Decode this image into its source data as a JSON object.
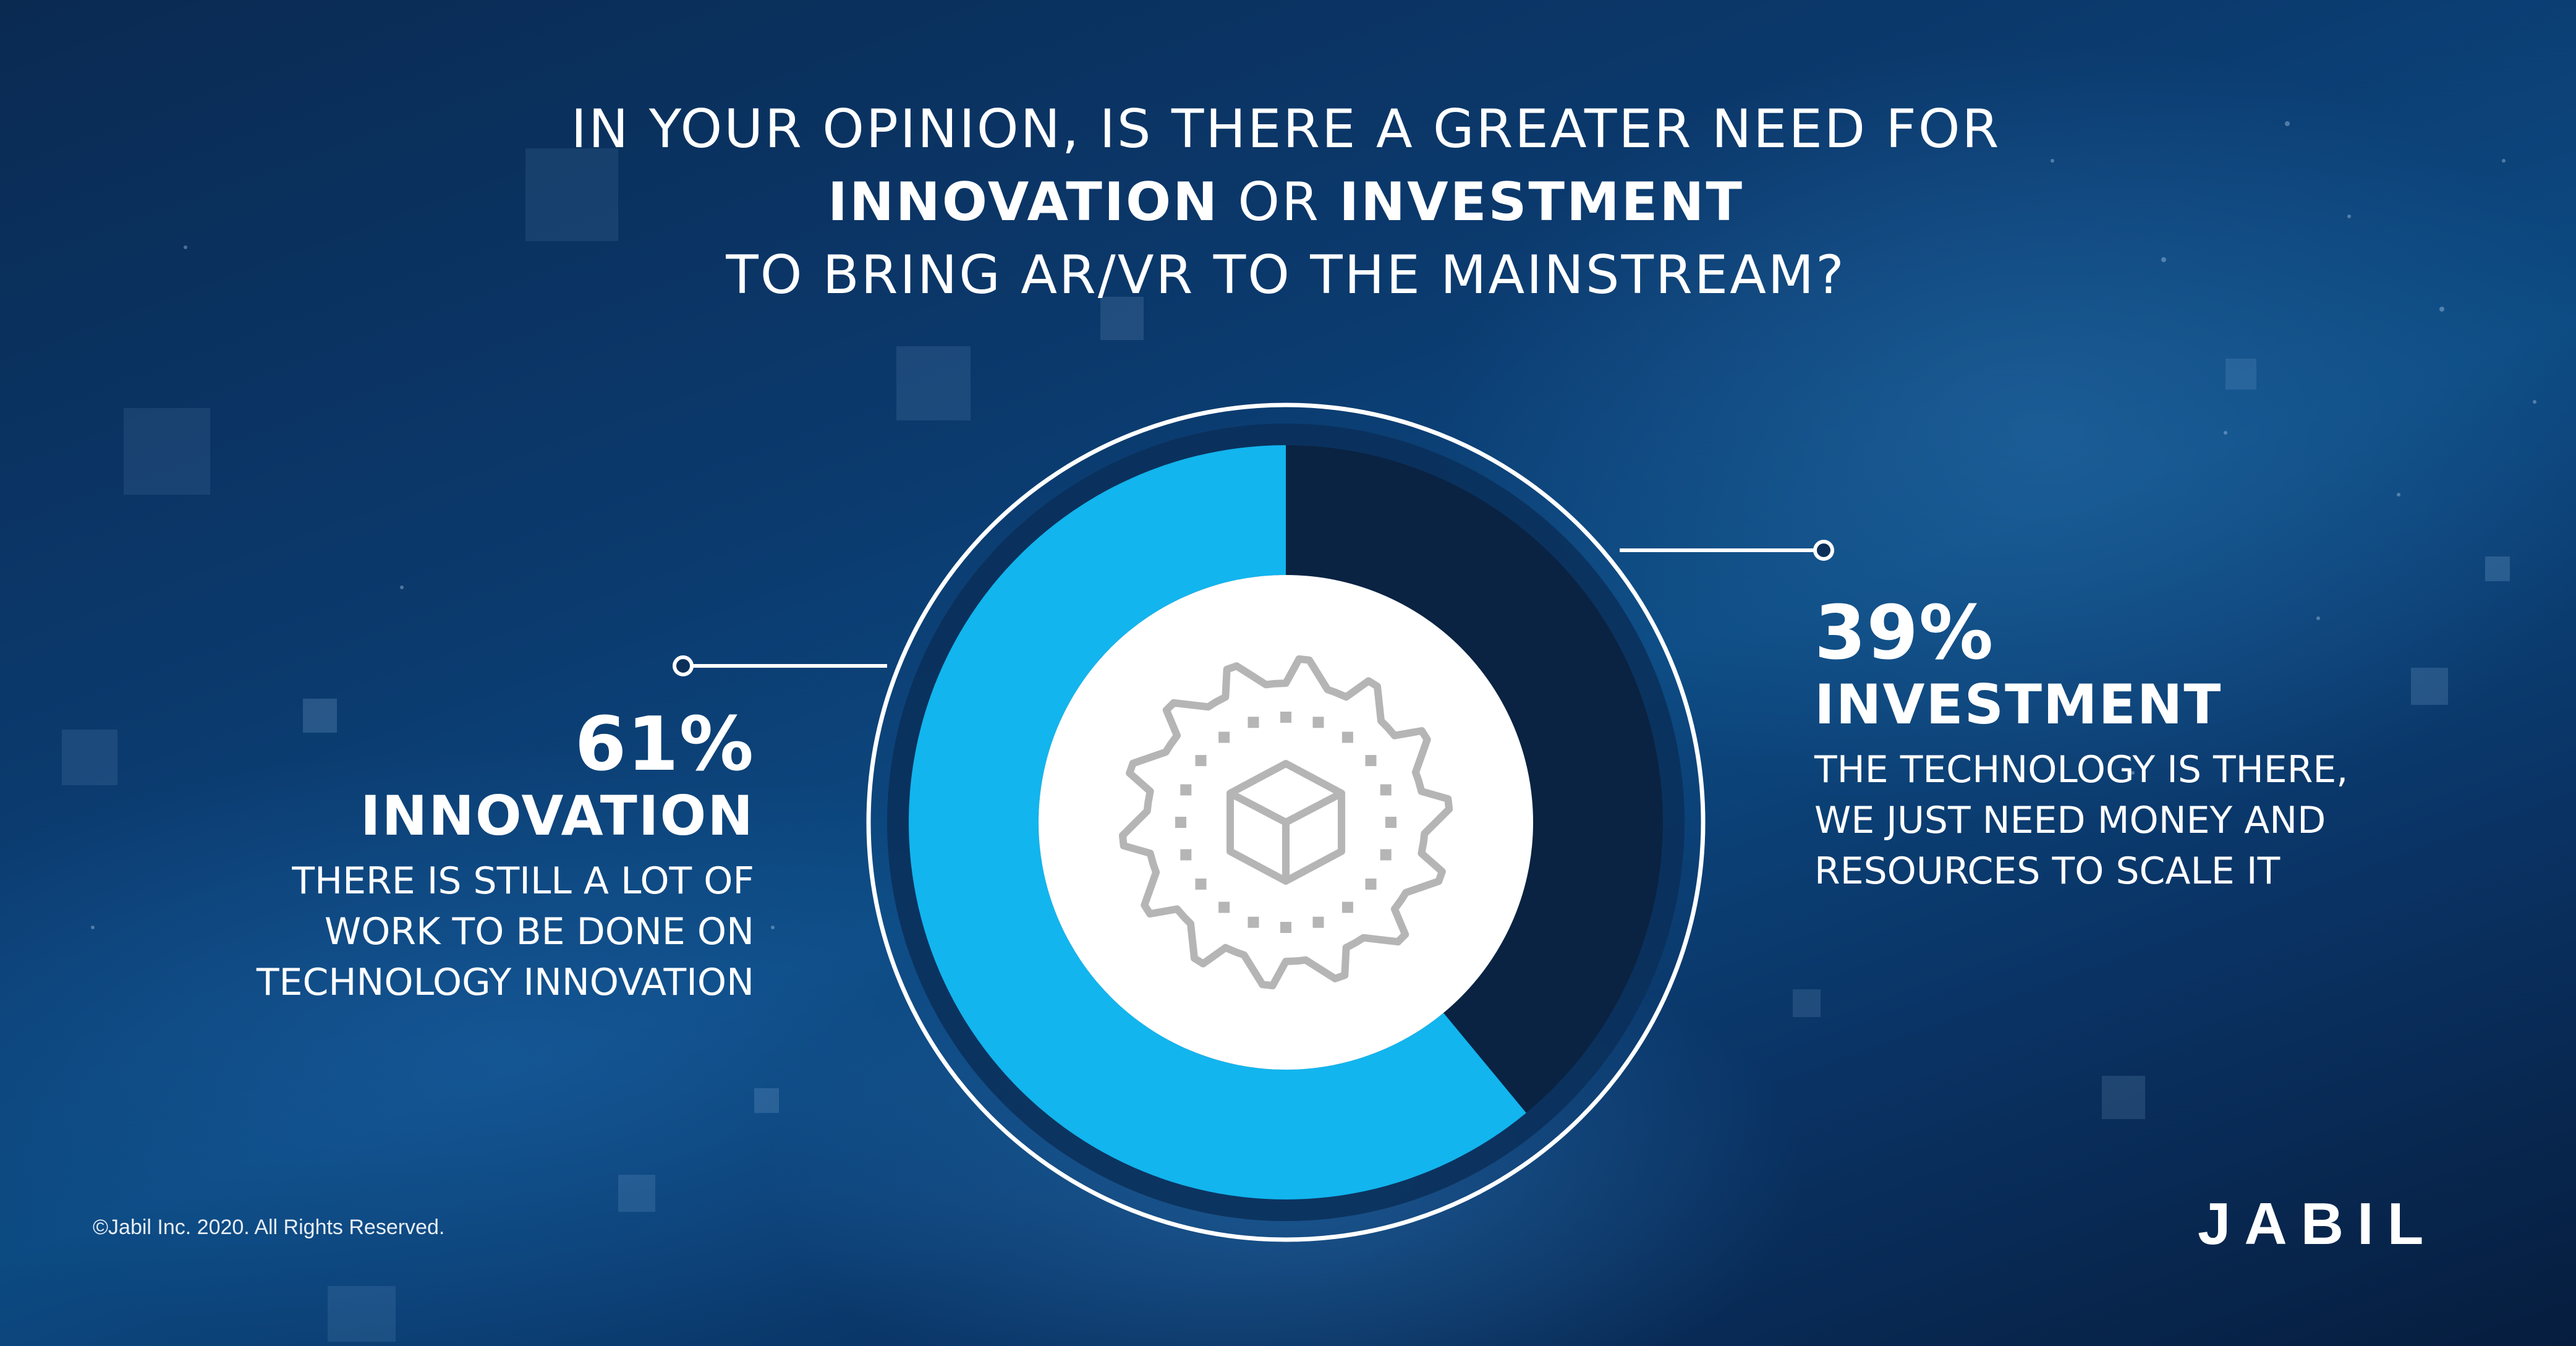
{
  "title": {
    "line1": "IN YOUR OPINION, IS THERE A GREATER NEED FOR",
    "line2_a": "INNOVATION",
    "line2_mid": "OR",
    "line2_b": "INVESTMENT",
    "line3": "TO BRING AR/VR TO THE MAINSTREAM?"
  },
  "chart_data": {
    "type": "pie",
    "categories": [
      "INNOVATION",
      "INVESTMENT"
    ],
    "values": [
      61,
      39
    ],
    "labels": [
      "61%",
      "39%"
    ],
    "descriptions": [
      [
        "THERE IS STILL A LOT OF",
        "WORK TO BE DONE ON",
        "TECHNOLOGY INNOVATION"
      ],
      [
        "THE TECHNOLOGY IS THERE,",
        "WE JUST NEED MONEY AND",
        "RESOURCES TO SCALE IT"
      ]
    ],
    "colors": [
      "#12b5ee",
      "#0a2342"
    ],
    "center_icon": "gear-cube-icon"
  },
  "footer": {
    "copyright": "©Jabil Inc. 2020. All Rights Reserved.",
    "logo": "JABIL"
  }
}
